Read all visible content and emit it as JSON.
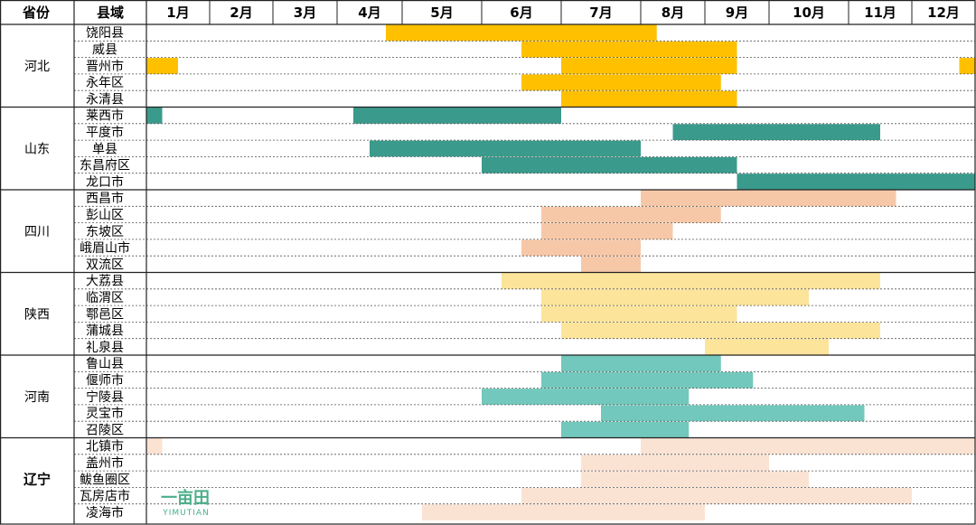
{
  "headers": {
    "province": "省份",
    "county": "县域"
  },
  "logo": {
    "mark": "一亩田",
    "text": "YIMUTIAN"
  },
  "chart_data": {
    "type": "gantt",
    "months": [
      "1月",
      "2月",
      "3月",
      "4月",
      "5月",
      "6月",
      "7月",
      "8月",
      "9月",
      "10月",
      "11月",
      "12月"
    ],
    "groups": [
      {
        "province": "河北",
        "bold": false,
        "color": "#FFC000",
        "counties": [
          {
            "name": "饶阳县",
            "periods": [
              [
                4.75,
                8.25
              ]
            ]
          },
          {
            "name": "威县",
            "periods": [
              [
                6.5,
                9.5
              ]
            ]
          },
          {
            "name": "晋州市",
            "periods": [
              [
                1.0,
                1.5
              ],
              [
                7.0,
                9.5
              ],
              [
                12.75,
                13.0
              ]
            ]
          },
          {
            "name": "永年区",
            "periods": [
              [
                6.5,
                9.25
              ]
            ]
          },
          {
            "name": "永清县",
            "periods": [
              [
                7.0,
                9.5
              ]
            ]
          }
        ]
      },
      {
        "province": "山东",
        "bold": false,
        "color": "#3A9A8C",
        "counties": [
          {
            "name": "莱西市",
            "periods": [
              [
                1.0,
                1.25
              ],
              [
                4.25,
                7.0
              ]
            ]
          },
          {
            "name": "平度市",
            "periods": [
              [
                8.5,
                11.5
              ]
            ]
          },
          {
            "name": "单县",
            "periods": [
              [
                4.5,
                8.0
              ]
            ]
          },
          {
            "name": "东昌府区",
            "periods": [
              [
                6.0,
                9.5
              ]
            ]
          },
          {
            "name": "龙口市",
            "periods": [
              [
                9.5,
                13.0
              ]
            ]
          }
        ]
      },
      {
        "province": "四川",
        "bold": false,
        "color": "#F7C8A8",
        "counties": [
          {
            "name": "西昌市",
            "periods": [
              [
                8.0,
                11.75
              ]
            ]
          },
          {
            "name": "彭山区",
            "periods": [
              [
                6.75,
                9.25
              ]
            ]
          },
          {
            "name": "东坡区",
            "periods": [
              [
                6.75,
                8.5
              ]
            ]
          },
          {
            "name": "峨眉山市",
            "periods": [
              [
                6.5,
                8.0
              ]
            ]
          },
          {
            "name": "双流区",
            "periods": [
              [
                7.25,
                8.0
              ]
            ]
          }
        ]
      },
      {
        "province": "陕西",
        "bold": false,
        "color": "#FCE49A",
        "counties": [
          {
            "name": "大荔县",
            "periods": [
              [
                6.25,
                11.5
              ]
            ]
          },
          {
            "name": "临渭区",
            "periods": [
              [
                6.75,
                10.5
              ]
            ]
          },
          {
            "name": "鄠邑区",
            "periods": [
              [
                6.75,
                9.5
              ]
            ]
          },
          {
            "name": "蒲城县",
            "periods": [
              [
                7.0,
                11.5
              ]
            ]
          },
          {
            "name": "礼泉县",
            "periods": [
              [
                9.0,
                10.75
              ]
            ]
          }
        ]
      },
      {
        "province": "河南",
        "bold": false,
        "color": "#72C8BC",
        "counties": [
          {
            "name": "鲁山县",
            "periods": [
              [
                7.0,
                9.25
              ]
            ]
          },
          {
            "name": "偃师市",
            "periods": [
              [
                6.75,
                9.75
              ]
            ]
          },
          {
            "name": "宁陵县",
            "periods": [
              [
                6.0,
                8.75
              ]
            ]
          },
          {
            "name": "灵宝市",
            "periods": [
              [
                7.5,
                11.25
              ]
            ]
          },
          {
            "name": "召陵区",
            "periods": [
              [
                7.0,
                8.75
              ]
            ]
          }
        ]
      },
      {
        "province": "辽宁",
        "bold": true,
        "color": "#FBE3D4",
        "counties": [
          {
            "name": "北镇市",
            "periods": [
              [
                1.0,
                1.25
              ],
              [
                8.0,
                13.0
              ]
            ]
          },
          {
            "name": "盖州市",
            "periods": [
              [
                7.25,
                10.0
              ]
            ]
          },
          {
            "name": "鲅鱼圈区",
            "periods": [
              [
                7.25,
                10.5
              ]
            ]
          },
          {
            "name": "瓦房店市",
            "periods": [
              [
                6.5,
                12.0
              ]
            ]
          },
          {
            "name": "凌海市",
            "periods": [
              [
                5.25,
                9.0
              ]
            ]
          }
        ]
      }
    ]
  }
}
